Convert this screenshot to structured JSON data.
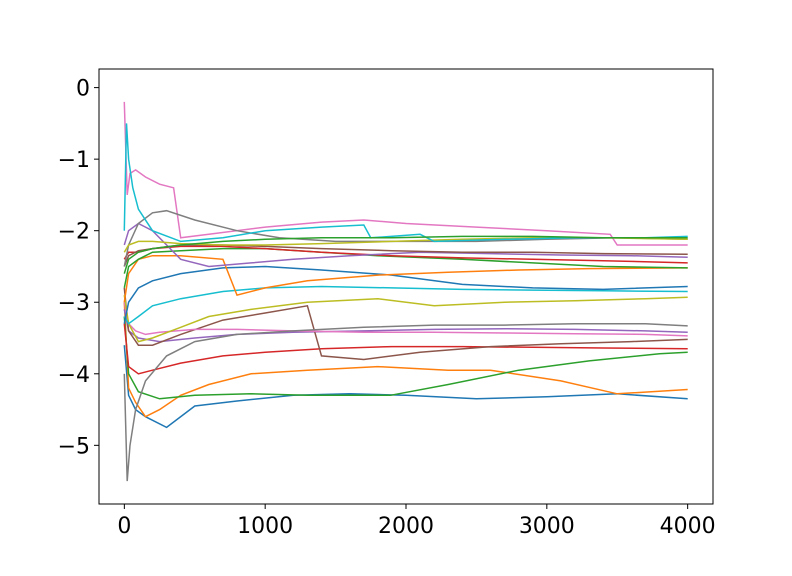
{
  "chart_data": {
    "type": "line",
    "title": "",
    "xlabel": "",
    "ylabel": "",
    "xlim": [
      -180,
      4180
    ],
    "ylim": [
      -5.82,
      0.26
    ],
    "grid": false,
    "legend": "none",
    "xticks": [
      0,
      1000,
      2000,
      3000,
      4000
    ],
    "xtick_labels": [
      "0",
      "1000",
      "2000",
      "3000",
      "4000"
    ],
    "yticks": [
      0,
      -1,
      -2,
      -3,
      -4,
      -5
    ],
    "ytick_labels": [
      "0",
      "−1",
      "−2",
      "−3",
      "−4",
      "−5"
    ],
    "series": [
      {
        "color": "#1f77b4",
        "x": [
          0,
          30,
          80,
          150,
          300,
          500,
          800,
          1200,
          1600,
          2000,
          2500,
          3000,
          3500,
          4000
        ],
        "y": [
          -3.6,
          -4.3,
          -4.5,
          -4.6,
          -4.75,
          -4.45,
          -4.38,
          -4.3,
          -4.28,
          -4.3,
          -4.35,
          -4.32,
          -4.28,
          -4.35
        ]
      },
      {
        "color": "#ff7f0e",
        "x": [
          0,
          30,
          80,
          150,
          250,
          400,
          600,
          900,
          1300,
          1800,
          2300,
          2600,
          3100,
          3500,
          4000
        ],
        "y": [
          -3.0,
          -4.2,
          -4.4,
          -4.6,
          -4.5,
          -4.3,
          -4.15,
          -4.0,
          -3.95,
          -3.9,
          -3.95,
          -3.95,
          -4.1,
          -4.28,
          -4.22
        ]
      },
      {
        "color": "#2ca02c",
        "x": [
          0,
          30,
          100,
          250,
          500,
          900,
          1300,
          1800,
          1890,
          2300,
          2800,
          3300,
          3800,
          4000
        ],
        "y": [
          -3.2,
          -4.0,
          -4.25,
          -4.35,
          -4.3,
          -4.28,
          -4.3,
          -4.3,
          -4.3,
          -4.15,
          -3.95,
          -3.82,
          -3.72,
          -3.7
        ]
      },
      {
        "color": "#d62728",
        "x": [
          0,
          30,
          100,
          200,
          400,
          700,
          1000,
          1400,
          1900,
          2400,
          2900,
          3400,
          4000
        ],
        "y": [
          -3.3,
          -3.9,
          -4.0,
          -3.95,
          -3.85,
          -3.75,
          -3.7,
          -3.65,
          -3.62,
          -3.62,
          -3.63,
          -3.64,
          -3.65
        ]
      },
      {
        "color": "#9467bd",
        "x": [
          0,
          30,
          100,
          250,
          500,
          800,
          1200,
          1700,
          2200,
          2700,
          3200,
          3700,
          4000
        ],
        "y": [
          -3.1,
          -3.4,
          -3.5,
          -3.55,
          -3.5,
          -3.45,
          -3.42,
          -3.4,
          -3.38,
          -3.37,
          -3.38,
          -3.4,
          -3.42
        ]
      },
      {
        "color": "#8c564b",
        "x": [
          0,
          30,
          100,
          200,
          400,
          700,
          1000,
          1300,
          1400,
          1700,
          2100,
          2600,
          3100,
          3600,
          4000
        ],
        "y": [
          -2.8,
          -3.4,
          -3.6,
          -3.6,
          -3.45,
          -3.25,
          -3.15,
          -3.05,
          -3.75,
          -3.8,
          -3.7,
          -3.62,
          -3.58,
          -3.55,
          -3.52
        ]
      },
      {
        "color": "#e377c2",
        "x": [
          0,
          30,
          80,
          150,
          250,
          500,
          800,
          1200,
          1700,
          2200,
          2700,
          3200,
          3700,
          4000
        ],
        "y": [
          -3.0,
          -3.3,
          -3.4,
          -3.45,
          -3.42,
          -3.38,
          -3.38,
          -3.4,
          -3.42,
          -3.42,
          -3.43,
          -3.44,
          -3.45,
          -3.47
        ]
      },
      {
        "color": "#7f7f7f",
        "x": [
          0,
          20,
          40,
          80,
          150,
          300,
          500,
          800,
          1200,
          1700,
          2200,
          2700,
          3200,
          3700,
          4000
        ],
        "y": [
          -4.0,
          -5.5,
          -5.0,
          -4.5,
          -4.1,
          -3.75,
          -3.55,
          -3.45,
          -3.4,
          -3.35,
          -3.32,
          -3.32,
          -3.3,
          -3.3,
          -3.33
        ]
      },
      {
        "color": "#bcbd22",
        "x": [
          0,
          30,
          100,
          200,
          400,
          600,
          900,
          1300,
          1800,
          2200,
          2700,
          3200,
          3700,
          4000
        ],
        "y": [
          -2.9,
          -3.3,
          -3.55,
          -3.5,
          -3.35,
          -3.2,
          -3.1,
          -3.0,
          -2.95,
          -3.05,
          -3.0,
          -2.98,
          -2.95,
          -2.93
        ]
      },
      {
        "color": "#17becf",
        "x": [
          0,
          30,
          100,
          200,
          400,
          700,
          1000,
          1400,
          1900,
          2400,
          2900,
          3400,
          4000
        ],
        "y": [
          -3.2,
          -3.3,
          -3.2,
          -3.05,
          -2.95,
          -2.85,
          -2.8,
          -2.78,
          -2.8,
          -2.82,
          -2.83,
          -2.84,
          -2.85
        ]
      },
      {
        "color": "#1f77b4",
        "x": [
          0,
          30,
          100,
          200,
          400,
          700,
          1000,
          1400,
          1900,
          2400,
          2900,
          3400,
          4000
        ],
        "y": [
          -3.3,
          -3.0,
          -2.8,
          -2.7,
          -2.6,
          -2.52,
          -2.5,
          -2.55,
          -2.62,
          -2.75,
          -2.8,
          -2.82,
          -2.78
        ]
      },
      {
        "color": "#ff7f0e",
        "x": [
          0,
          30,
          100,
          200,
          400,
          700,
          800,
          1000,
          1300,
          1800,
          2300,
          2800,
          3300,
          4000
        ],
        "y": [
          -3.0,
          -2.6,
          -2.4,
          -2.35,
          -2.35,
          -2.4,
          -2.9,
          -2.8,
          -2.7,
          -2.62,
          -2.58,
          -2.55,
          -2.53,
          -2.52
        ]
      },
      {
        "color": "#2ca02c",
        "x": [
          0,
          30,
          100,
          200,
          400,
          700,
          1000,
          1400,
          1800,
          2400,
          2900,
          3400,
          4000
        ],
        "y": [
          -2.8,
          -2.5,
          -2.4,
          -2.3,
          -2.28,
          -2.25,
          -2.25,
          -2.3,
          -2.35,
          -2.4,
          -2.45,
          -2.5,
          -2.52
        ]
      },
      {
        "color": "#d62728",
        "x": [
          0,
          30,
          100,
          200,
          400,
          700,
          1000,
          1400,
          1900,
          2400,
          2900,
          3400,
          4000
        ],
        "y": [
          -2.4,
          -2.3,
          -2.3,
          -2.25,
          -2.22,
          -2.22,
          -2.25,
          -2.3,
          -2.35,
          -2.38,
          -2.4,
          -2.42,
          -2.45
        ]
      },
      {
        "color": "#9467bd",
        "x": [
          0,
          30,
          100,
          200,
          400,
          600,
          900,
          1200,
          1600,
          2100,
          2600,
          3100,
          3600,
          4000
        ],
        "y": [
          -2.2,
          -2.0,
          -1.9,
          -2.0,
          -2.4,
          -2.5,
          -2.45,
          -2.4,
          -2.35,
          -2.3,
          -2.32,
          -2.34,
          -2.35,
          -2.37
        ]
      },
      {
        "color": "#8c564b",
        "x": [
          0,
          30,
          100,
          200,
          400,
          700,
          1000,
          1400,
          1900,
          2400,
          2900,
          3400,
          4000
        ],
        "y": [
          -2.5,
          -2.35,
          -2.28,
          -2.25,
          -2.2,
          -2.2,
          -2.22,
          -2.25,
          -2.28,
          -2.3,
          -2.3,
          -2.32,
          -2.33
        ]
      },
      {
        "color": "#e377c2",
        "x": [
          0,
          20,
          40,
          80,
          150,
          250,
          350,
          400,
          600,
          1000,
          1400,
          1700,
          2000,
          2500,
          3000,
          3450,
          3500,
          4000
        ],
        "y": [
          -0.2,
          -1.5,
          -1.2,
          -1.15,
          -1.25,
          -1.35,
          -1.4,
          -2.1,
          -2.05,
          -1.95,
          -1.88,
          -1.85,
          -1.9,
          -1.95,
          -2.0,
          -2.05,
          -2.2,
          -2.2
        ]
      },
      {
        "color": "#7f7f7f",
        "x": [
          0,
          30,
          100,
          200,
          300,
          500,
          800,
          1100,
          1500,
          2000,
          2500,
          3000,
          3500,
          4000
        ],
        "y": [
          -2.5,
          -2.2,
          -1.9,
          -1.75,
          -1.72,
          -1.85,
          -2.0,
          -2.1,
          -2.15,
          -2.15,
          -2.15,
          -2.12,
          -2.1,
          -2.12
        ]
      },
      {
        "color": "#bcbd22",
        "x": [
          0,
          30,
          100,
          200,
          400,
          700,
          1000,
          1400,
          1900,
          2400,
          2900,
          3400,
          4000
        ],
        "y": [
          -2.3,
          -2.2,
          -2.15,
          -2.15,
          -2.18,
          -2.2,
          -2.2,
          -2.18,
          -2.15,
          -2.12,
          -2.1,
          -2.1,
          -2.12
        ]
      },
      {
        "color": "#17becf",
        "x": [
          0,
          15,
          30,
          60,
          100,
          200,
          400,
          700,
          1000,
          1400,
          1700,
          1750,
          2100,
          2200,
          2700,
          3200,
          3700,
          4000
        ],
        "y": [
          -2.0,
          -0.5,
          -1.0,
          -1.4,
          -1.7,
          -2.0,
          -2.15,
          -2.1,
          -2.0,
          -1.95,
          -1.92,
          -2.1,
          -2.05,
          -2.15,
          -2.12,
          -2.1,
          -2.1,
          -2.08
        ]
      },
      {
        "color": "#2ca02c",
        "x": [
          0,
          30,
          100,
          200,
          400,
          700,
          1000,
          1400,
          1900,
          2400,
          2900,
          3400,
          4000
        ],
        "y": [
          -2.6,
          -2.4,
          -2.3,
          -2.25,
          -2.2,
          -2.15,
          -2.12,
          -2.1,
          -2.1,
          -2.08,
          -2.08,
          -2.1,
          -2.1
        ]
      }
    ]
  }
}
